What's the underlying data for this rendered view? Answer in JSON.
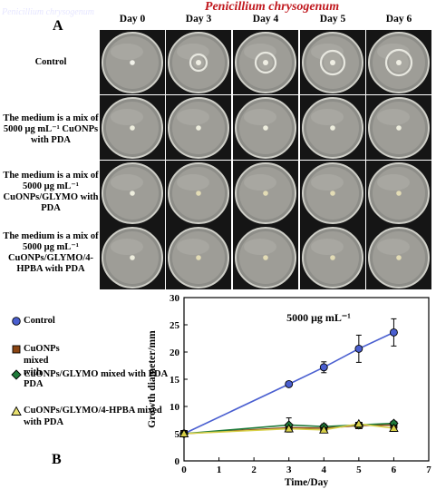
{
  "figure": {
    "title": "Penicillium chrysogenum",
    "ghost_text": "Penicillium chrysogenum",
    "panel_a": "A",
    "panel_b": "B"
  },
  "grid": {
    "days": [
      "Day 0",
      "Day 3",
      "Day 4",
      "Day 5",
      "Day 6"
    ],
    "rows": [
      {
        "label": "Control",
        "treatment": "control"
      },
      {
        "label": "The medium is a mix of 5000 μg mL⁻¹ CuONPs with PDA",
        "treatment": "cuonps"
      },
      {
        "label": "The medium is a mix of 5000 μg mL⁻¹ CuONPs/GLYMO with PDA",
        "treatment": "glymo"
      },
      {
        "label": "The medium is a mix of 5000 μg mL⁻¹ CuONPs/GLYMO/4-HPBA with PDA",
        "treatment": "hpba"
      }
    ]
  },
  "legend": [
    {
      "label": "Control",
      "marker": "circle",
      "color": "#4a5fd0"
    },
    {
      "label": "CuONPs mixed with PDA",
      "marker": "square",
      "color": "#8b4513"
    },
    {
      "label": "CuONPs/GLYMO mixed with PDA",
      "marker": "diamond",
      "color": "#1f7a3a"
    },
    {
      "label": "CuONPs/GLYMO/4-HPBA mixed with PDA",
      "marker": "triangle",
      "color": "#e8e070"
    }
  ],
  "chart_data": {
    "type": "line",
    "title": "5000 μg mL⁻¹",
    "xlabel": "Time/Day",
    "ylabel": "Growth diameter/mm",
    "xlim": [
      0,
      7
    ],
    "ylim": [
      0,
      30
    ],
    "xticks": [
      0,
      1,
      2,
      3,
      4,
      5,
      6,
      7
    ],
    "yticks": [
      0,
      5,
      10,
      15,
      20,
      25,
      30
    ],
    "grid": false,
    "legend_position": "left",
    "series": [
      {
        "name": "Control",
        "color": "#4a5fd0",
        "marker": "circle",
        "x": [
          0,
          3,
          4,
          5,
          6
        ],
        "y": [
          5,
          14.1,
          17.2,
          20.6,
          23.6
        ],
        "err": [
          0,
          0.3,
          1.0,
          2.5,
          2.5
        ]
      },
      {
        "name": "CuONPs mixed with PDA",
        "color": "#8b4513",
        "marker": "square",
        "x": [
          0,
          3,
          4,
          5,
          6
        ],
        "y": [
          5,
          6.1,
          6.0,
          6.5,
          6.6
        ],
        "err": [
          0,
          0.4,
          0.4,
          0.3,
          0.4
        ]
      },
      {
        "name": "CuONPs/GLYMO mixed with PDA",
        "color": "#1f7a3a",
        "marker": "diamond",
        "x": [
          0,
          3,
          4,
          5,
          6
        ],
        "y": [
          5,
          6.6,
          6.3,
          6.6,
          6.9
        ],
        "err": [
          0,
          1.3,
          0.5,
          0.4,
          0.4
        ]
      },
      {
        "name": "CuONPs/GLYMO/4-HPBA mixed with PDA",
        "color": "#d8d048",
        "marker": "triangle",
        "x": [
          0,
          3,
          4,
          5,
          6
        ],
        "y": [
          5,
          5.9,
          5.7,
          6.8,
          6.0
        ],
        "err": [
          0,
          0.3,
          0.4,
          0.3,
          0.4
        ]
      }
    ]
  }
}
